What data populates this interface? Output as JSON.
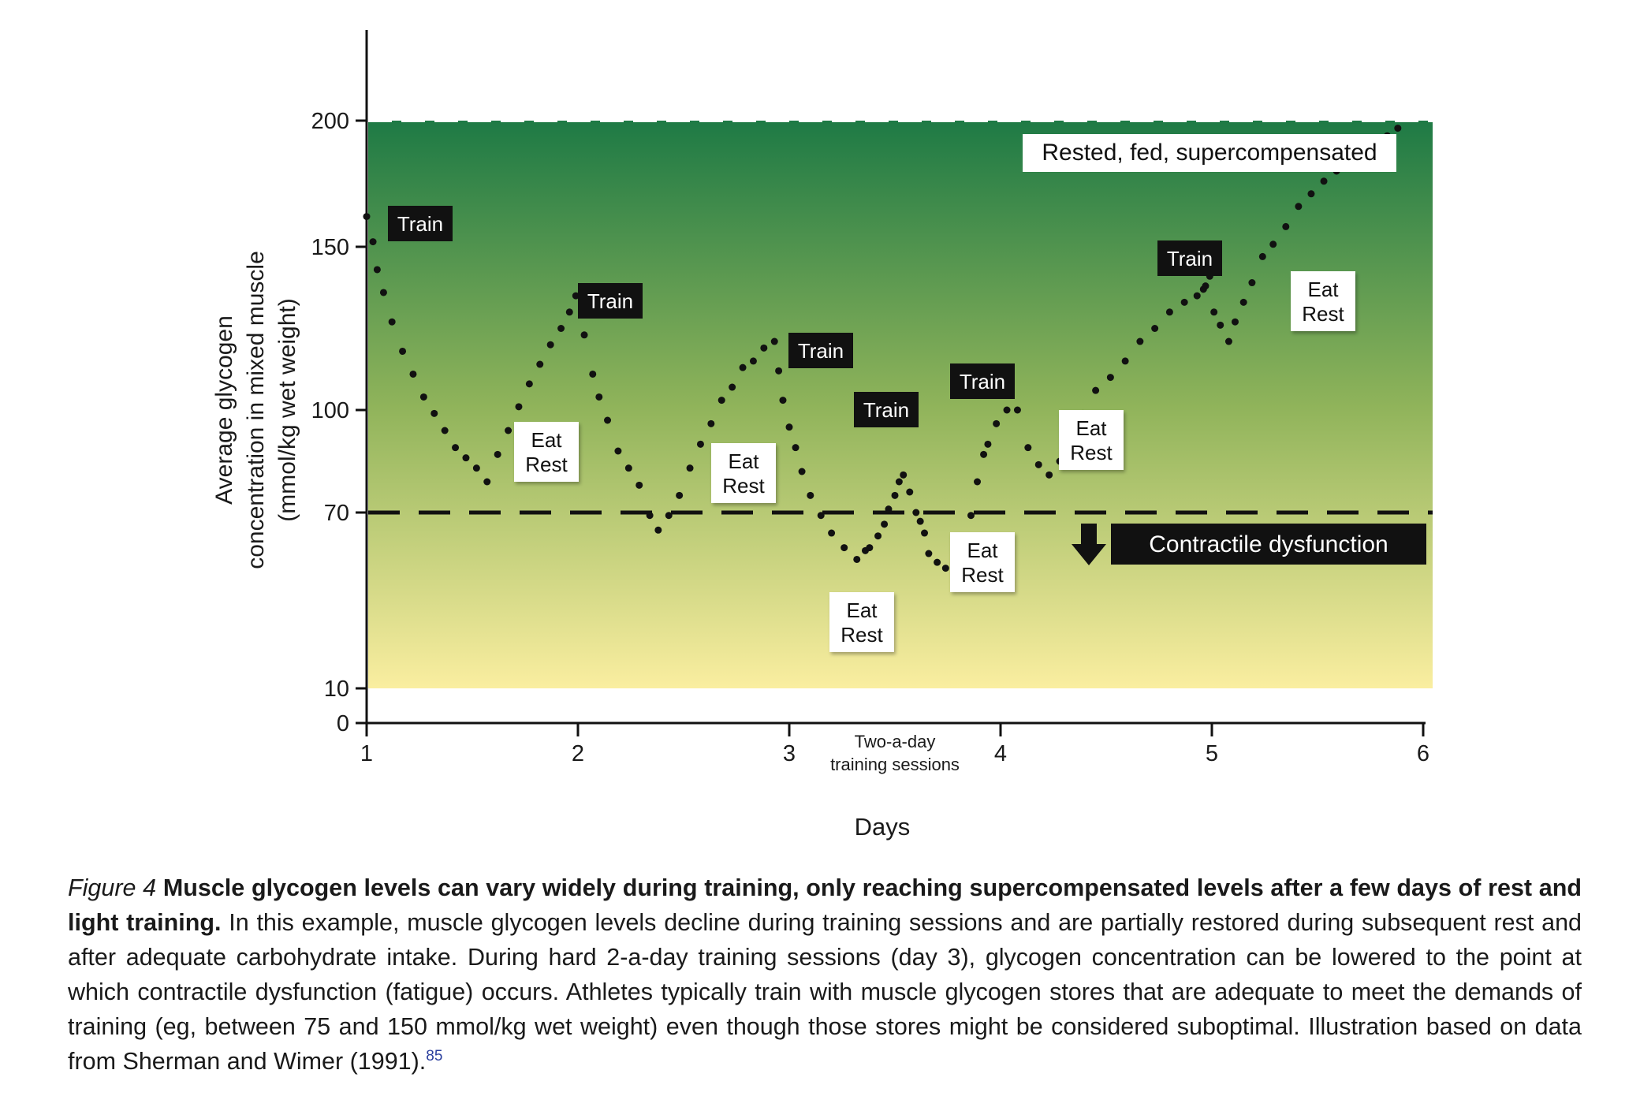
{
  "chart_data": {
    "type": "scatter",
    "xlabel": "Days",
    "ylabel": "Average glycogen",
    "ylabel_line2": "concentration in mixed muscle",
    "ylabel_line3": "(mmol/kg wet weight)",
    "x_ticks": [
      "1",
      "2",
      "3",
      "4",
      "5",
      "6"
    ],
    "y_ticks": [
      "0",
      "10",
      "70",
      "100",
      "150",
      "200"
    ],
    "xlim": [
      1,
      6
    ],
    "ylim": [
      0,
      200
    ],
    "dysfunction_threshold": 70,
    "supercompensated_level": 200,
    "x_annotation_line1": "Two-a-day",
    "x_annotation_line2": "training sessions",
    "annotations": {
      "train": "Train",
      "eat": "Eat",
      "rest": "Rest",
      "supercompensated": "Rested, fed, supercompensated",
      "dysfunction": "Contractile dysfunction"
    },
    "colors": {
      "top_gradient": "#1e7a45",
      "mid_gradient": "#8fb35a",
      "bottom_gradient": "#faeea0",
      "dots": "#111111"
    },
    "x": [
      1.0,
      1.03,
      1.05,
      1.08,
      1.12,
      1.17,
      1.22,
      1.27,
      1.32,
      1.37,
      1.42,
      1.47,
      1.52,
      1.57,
      1.62,
      1.67,
      1.72,
      1.77,
      1.82,
      1.87,
      1.92,
      1.96,
      1.99,
      2.03,
      2.07,
      2.1,
      2.14,
      2.19,
      2.24,
      2.29,
      2.34,
      2.38,
      2.43,
      2.48,
      2.53,
      2.58,
      2.63,
      2.68,
      2.73,
      2.78,
      2.83,
      2.88,
      2.93,
      2.95,
      2.97,
      3.0,
      3.03,
      3.06,
      3.1,
      3.15,
      3.2,
      3.26,
      3.32,
      3.36,
      3.38,
      3.42,
      3.45,
      3.47,
      3.5,
      3.52,
      3.54,
      3.57,
      3.6,
      3.62,
      3.64,
      3.66,
      3.7,
      3.74,
      3.78,
      3.82,
      3.86,
      3.89,
      3.92,
      3.94,
      3.98,
      4.03,
      4.08,
      4.13,
      4.18,
      4.23,
      4.28,
      4.33,
      4.39,
      4.45,
      4.52,
      4.59,
      4.66,
      4.73,
      4.8,
      4.87,
      4.93,
      4.96,
      4.97,
      4.99,
      5.01,
      5.04,
      5.08,
      5.11,
      5.15,
      5.19,
      5.24,
      5.29,
      5.35,
      5.41,
      5.47,
      5.53,
      5.59,
      5.65,
      5.71,
      5.77,
      5.83,
      5.88
    ],
    "y": [
      162,
      152,
      143,
      136,
      127,
      118,
      111,
      104,
      99,
      94,
      89,
      86,
      83,
      79,
      87,
      94,
      101,
      108,
      114,
      120,
      125,
      130,
      135,
      123,
      111,
      104,
      97,
      88,
      83,
      78,
      69,
      64,
      69,
      75,
      83,
      90,
      96,
      103,
      107,
      113,
      115,
      119,
      121,
      112,
      103,
      95,
      89,
      82,
      75,
      69,
      63,
      58,
      54,
      57,
      58,
      62,
      66,
      71,
      75,
      79,
      81,
      76,
      70,
      67,
      63,
      56,
      53,
      51,
      56,
      61,
      69,
      79,
      87,
      90,
      96,
      100,
      100,
      89,
      84,
      81,
      85,
      92,
      99,
      106,
      110,
      115,
      121,
      125,
      130,
      133,
      135,
      137,
      138,
      141,
      130,
      126,
      121,
      127,
      133,
      139,
      147,
      151,
      158,
      166,
      171,
      176,
      180,
      185,
      188,
      191,
      194,
      197
    ]
  },
  "caption": {
    "fig_label": "Figure 4",
    "bold_text": "Muscle glycogen levels can vary widely during training, only reaching supercompensated levels after a few days of rest and light training.",
    "body_text": "In this example, muscle glycogen levels decline during training sessions and are partially restored during subsequent rest and after adequate carbohydrate intake. During hard 2-a-day training sessions (day 3), glycogen concentration can be lowered to the point at which contractile dysfunction (fatigue) occurs. Athletes typically train with muscle glycogen stores that are adequate to meet the demands of training (eg, between 75 and 150 mmol/kg wet weight) even though those stores might be considered suboptimal. Illustration based on data from Sherman and Wimer (1991).",
    "reference": "85"
  }
}
